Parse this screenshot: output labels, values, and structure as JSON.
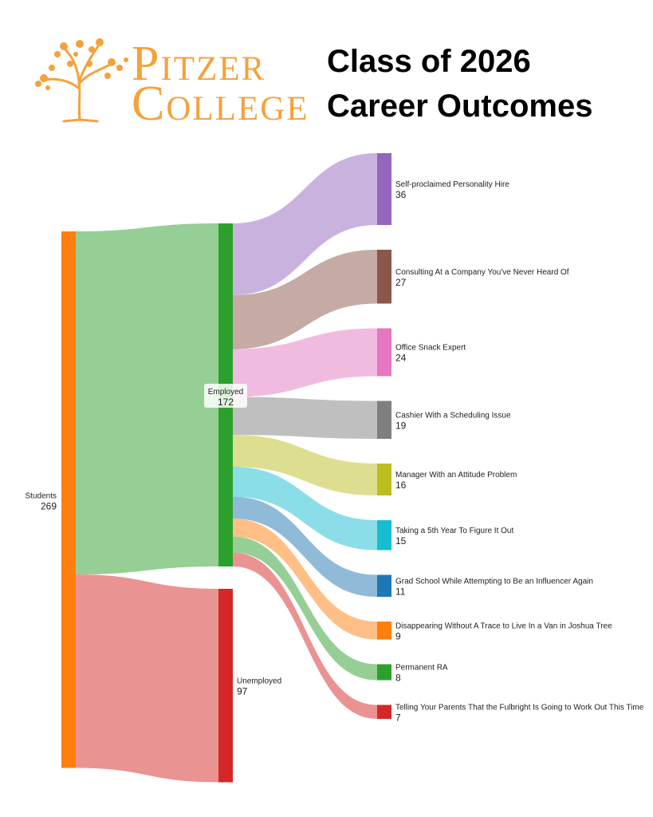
{
  "chart_data": {
    "type": "sankey",
    "logo_text": [
      "Pitzer",
      "College"
    ],
    "title_lines": [
      "Class of 2026",
      "Career Outcomes"
    ],
    "link_opacity": 0.5,
    "nodes": [
      {
        "name": "Students",
        "value": 269,
        "color": "#ff7f0e"
      },
      {
        "name": "Employed",
        "value": 172,
        "color": "#2ca02c"
      },
      {
        "name": "Unemployed",
        "value": 97,
        "color": "#d62728"
      },
      {
        "name": "Self-proclaimed Personality Hire",
        "value": 36,
        "color": "#9467bd"
      },
      {
        "name": "Consulting At a Company You've Never Heard Of",
        "value": 27,
        "color": "#8c564b"
      },
      {
        "name": "Office Snack Expert",
        "value": 24,
        "color": "#e377c2"
      },
      {
        "name": "Cashier With a Scheduling Issue",
        "value": 19,
        "color": "#7f7f7f"
      },
      {
        "name": "Manager With an Attitude Problem",
        "value": 16,
        "color": "#bcbd22"
      },
      {
        "name": "Taking a 5th Year To Figure It Out",
        "value": 15,
        "color": "#17becf"
      },
      {
        "name": "Grad School While Attempting to Be an Influencer Again",
        "value": 11,
        "color": "#1f77b4"
      },
      {
        "name": "Disappearing Without A Trace to Live In a Van in Joshua Tree",
        "value": 9,
        "color": "#ff7f0e"
      },
      {
        "name": "Permanent RA",
        "value": 8,
        "color": "#2ca02c"
      },
      {
        "name": "Telling Your Parents That the Fulbright Is Going to Work Out This Time",
        "value": 7,
        "color": "#d62728"
      }
    ],
    "links": [
      {
        "source": 0,
        "target": 1,
        "value": 172
      },
      {
        "source": 0,
        "target": 2,
        "value": 97
      },
      {
        "source": 1,
        "target": 3,
        "value": 36
      },
      {
        "source": 1,
        "target": 4,
        "value": 27
      },
      {
        "source": 1,
        "target": 5,
        "value": 24
      },
      {
        "source": 1,
        "target": 6,
        "value": 19
      },
      {
        "source": 1,
        "target": 7,
        "value": 16
      },
      {
        "source": 1,
        "target": 8,
        "value": 15
      },
      {
        "source": 1,
        "target": 9,
        "value": 11
      },
      {
        "source": 1,
        "target": 10,
        "value": 9
      },
      {
        "source": 1,
        "target": 11,
        "value": 8
      },
      {
        "source": 1,
        "target": 12,
        "value": 7
      }
    ]
  }
}
